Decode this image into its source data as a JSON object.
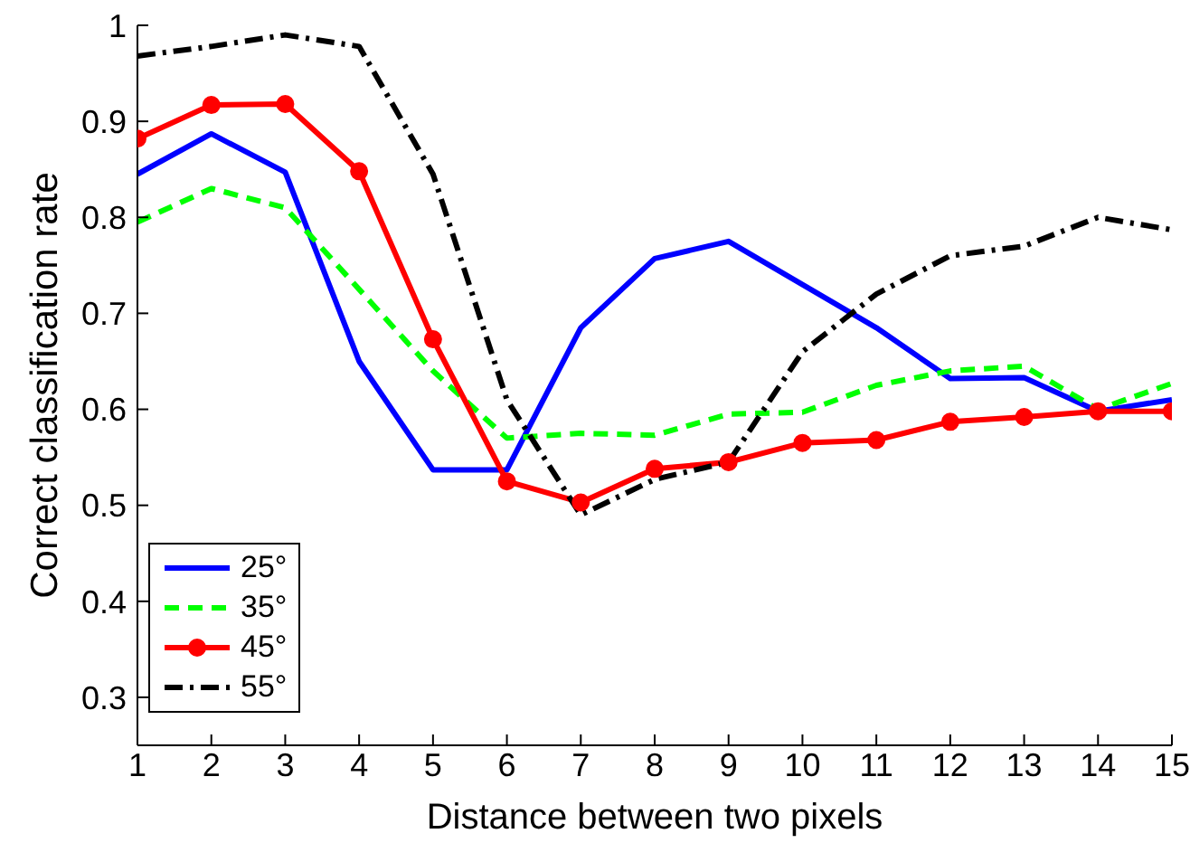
{
  "chart_data": {
    "type": "line",
    "xlabel": "Distance between two pixels",
    "ylabel": "Correct classification rate",
    "x": [
      1,
      2,
      3,
      4,
      5,
      6,
      7,
      8,
      9,
      10,
      11,
      12,
      13,
      14,
      15
    ],
    "xlim": [
      1,
      15
    ],
    "xticks": [
      1,
      2,
      3,
      4,
      5,
      6,
      7,
      8,
      9,
      10,
      11,
      12,
      13,
      14,
      15
    ],
    "ylim": [
      0.25,
      1
    ],
    "yticks": [
      0.3,
      0.4,
      0.5,
      0.6,
      0.7,
      0.8,
      0.9,
      1
    ],
    "grid": false,
    "legend": "bottom left",
    "series": [
      {
        "name": "25°",
        "color": "#0000ff",
        "line_style": "solid",
        "marker": "none",
        "values": [
          0.845,
          0.887,
          0.847,
          0.65,
          0.537,
          0.537,
          0.685,
          0.757,
          0.775,
          0.73,
          0.685,
          0.632,
          0.633,
          0.598,
          0.61
        ]
      },
      {
        "name": "35°",
        "color": "#00ff00",
        "line_style": "dashed",
        "marker": "none",
        "values": [
          0.795,
          0.83,
          0.81,
          0.725,
          0.64,
          0.57,
          0.575,
          0.573,
          0.595,
          0.597,
          0.625,
          0.64,
          0.645,
          0.6,
          0.627
        ]
      },
      {
        "name": "45°",
        "color": "#ff0000",
        "line_style": "solid",
        "marker": "circle",
        "values": [
          0.882,
          0.917,
          0.918,
          0.848,
          0.673,
          0.525,
          0.503,
          0.538,
          0.545,
          0.565,
          0.568,
          0.587,
          0.592,
          0.598,
          0.598
        ]
      },
      {
        "name": "55°",
        "color": "#000000",
        "line_style": "dashdot",
        "marker": "none",
        "values": [
          0.968,
          0.978,
          0.99,
          0.978,
          0.845,
          0.61,
          0.49,
          0.527,
          0.545,
          0.66,
          0.72,
          0.76,
          0.77,
          0.8,
          0.787
        ]
      }
    ]
  }
}
